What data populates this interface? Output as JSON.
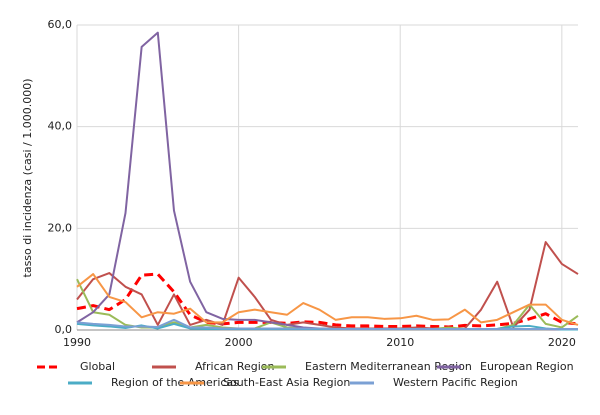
{
  "chart_data": {
    "type": "line",
    "y_label": "tasso di incidenza (casi / 1.000.000)",
    "x": [
      1990,
      1991,
      1992,
      1993,
      1994,
      1995,
      1996,
      1997,
      1998,
      1999,
      2000,
      2001,
      2002,
      2003,
      2004,
      2005,
      2006,
      2007,
      2008,
      2009,
      2010,
      2011,
      2012,
      2013,
      2014,
      2015,
      2016,
      2017,
      2018,
      2019,
      2020,
      2021
    ],
    "xlim": [
      1990,
      2021
    ],
    "xticks": [
      1990,
      2000,
      2010,
      2020
    ],
    "ylim": [
      0,
      60
    ],
    "yticks": [
      {
        "value": 0,
        "label": "0,0"
      },
      {
        "value": 20,
        "label": "20,0"
      },
      {
        "value": 40,
        "label": "40,0"
      },
      {
        "value": 60,
        "label": "60,0"
      }
    ],
    "grid": true,
    "legend_position": "bottom",
    "series": [
      {
        "name": "Global",
        "color": "#ff0000",
        "dashed": true,
        "values": [
          4.2,
          4.8,
          4,
          6,
          10.8,
          11,
          7.5,
          3,
          1.5,
          1.2,
          1.5,
          1.5,
          1.5,
          1.3,
          1.6,
          1.5,
          1,
          0.8,
          0.8,
          0.7,
          0.7,
          0.8,
          0.7,
          0.6,
          0.9,
          0.8,
          1,
          1.3,
          2.2,
          3.2,
          1.5,
          1.2
        ]
      },
      {
        "name": "African Region",
        "color": "#c0504d",
        "values": [
          6,
          10,
          11.2,
          8.5,
          7,
          1,
          7,
          1,
          2,
          1,
          10.3,
          6.5,
          2,
          1,
          1.5,
          1,
          0.5,
          0.3,
          0.3,
          0.3,
          0.3,
          0.5,
          0.3,
          0.3,
          0.3,
          4,
          9.5,
          0.5,
          4,
          17.3,
          13,
          11
        ]
      },
      {
        "name": "Eastern Mediterranean Region",
        "color": "#9bbb59",
        "values": [
          10,
          3.5,
          3,
          1,
          0.5,
          0.5,
          1.5,
          0.5,
          1,
          0.5,
          0.3,
          0.3,
          1.5,
          0.5,
          0.3,
          0.3,
          0.2,
          0.2,
          0.2,
          0.2,
          0.2,
          0.2,
          0.2,
          0.5,
          0.2,
          0.2,
          0.2,
          1,
          5,
          1.2,
          0.5,
          2.8
        ]
      },
      {
        "name": "European Region",
        "color": "#8064a2",
        "values": [
          1.5,
          3.5,
          7,
          23,
          55.7,
          58.5,
          23.5,
          9.5,
          3.5,
          2.2,
          2,
          2,
          1.5,
          1,
          0.5,
          0.3,
          0.2,
          0.2,
          0.2,
          0.2,
          0.2,
          0.2,
          0.2,
          0.2,
          0.2,
          0.2,
          0.2,
          0.2,
          0.2,
          0.2,
          0.1,
          0.1
        ]
      },
      {
        "name": "Region of the Americas",
        "color": "#4bacc6",
        "values": [
          1.2,
          0.9,
          0.7,
          0.4,
          0.9,
          0.3,
          1.2,
          0.3,
          0.2,
          0.2,
          0.2,
          0.2,
          0.2,
          0.2,
          0.2,
          0.2,
          0.2,
          0.2,
          0.2,
          0.2,
          0.2,
          0.2,
          0.2,
          0.2,
          0.2,
          0.2,
          0.2,
          0.7,
          0.8,
          0.3,
          0.1,
          0.1
        ]
      },
      {
        "name": "South-East Asia Region",
        "color": "#f79646",
        "values": [
          8.5,
          11,
          6.5,
          5.5,
          2.5,
          3.5,
          3.2,
          4.2,
          1.5,
          1.5,
          3.5,
          4,
          3.5,
          3,
          5.3,
          4,
          2,
          2.5,
          2.5,
          2.2,
          2.3,
          2.8,
          2,
          2.1,
          4,
          1.5,
          2,
          3.5,
          5,
          5,
          2,
          1
        ]
      },
      {
        "name": "Western Pacific Region",
        "color": "#7ba0d4",
        "values": [
          1.5,
          1.2,
          1,
          0.7,
          0.7,
          0.6,
          2,
          0.5,
          0.5,
          0.3,
          0.3,
          0.3,
          0.3,
          0.3,
          0.3,
          0.3,
          0.2,
          0.2,
          0.2,
          0.2,
          0.2,
          0.2,
          0.2,
          0.2,
          0.2,
          0.2,
          0.2,
          0.2,
          0.2,
          0.2,
          0.2,
          0.2
        ]
      }
    ]
  }
}
